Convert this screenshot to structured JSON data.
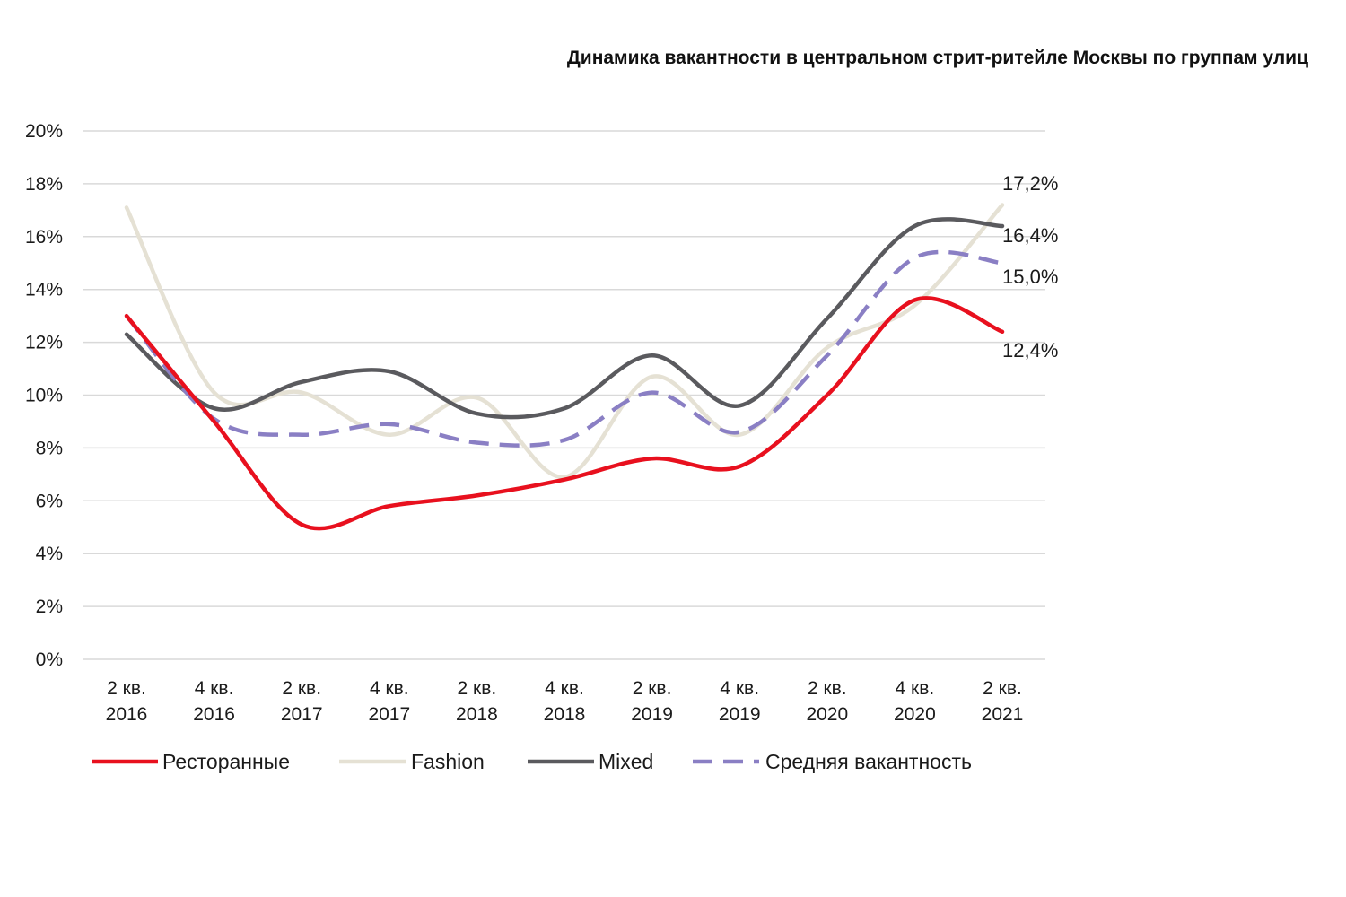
{
  "chart_data": {
    "type": "line",
    "title": "Динамика вакантности в центральном стрит-ритейле Москвы по группам улиц",
    "xlabel": "",
    "ylabel": "",
    "categories": [
      "2 кв. 2016",
      "4 кв. 2016",
      "2 кв. 2017",
      "4 кв. 2017",
      "2 кв. 2018",
      "4 кв. 2018",
      "2 кв. 2019",
      "4 кв. 2019",
      "2 кв. 2020",
      "4 кв. 2020",
      "2 кв. 2021"
    ],
    "category_lines": [
      [
        "2 кв.",
        "2016"
      ],
      [
        "4 кв.",
        "2016"
      ],
      [
        "2 кв.",
        "2017"
      ],
      [
        "4 кв.",
        "2017"
      ],
      [
        "2 кв.",
        "2018"
      ],
      [
        "4 кв.",
        "2018"
      ],
      [
        "2 кв.",
        "2019"
      ],
      [
        "4 кв.",
        "2019"
      ],
      [
        "2 кв.",
        "2020"
      ],
      [
        "4 кв.",
        "2020"
      ],
      [
        "2 кв.",
        "2021"
      ]
    ],
    "ylim": [
      0,
      20
    ],
    "yticks": [
      0,
      2,
      4,
      6,
      8,
      10,
      12,
      14,
      16,
      18,
      20
    ],
    "ytick_labels": [
      "0%",
      "2%",
      "4%",
      "6%",
      "8%",
      "10%",
      "12%",
      "14%",
      "16%",
      "18%",
      "20%"
    ],
    "grid": true,
    "legend_position": "bottom",
    "series": [
      {
        "name": "Ресторанные",
        "values": [
          13.0,
          9.0,
          5.1,
          5.8,
          6.2,
          6.8,
          7.6,
          7.3,
          10.0,
          13.6,
          12.4
        ],
        "color": "#e8101e",
        "dash": "solid",
        "end_label": "12,4%"
      },
      {
        "name": "Fashion",
        "values": [
          17.1,
          10.1,
          10.1,
          8.5,
          9.9,
          6.9,
          10.7,
          8.5,
          11.8,
          13.4,
          17.2
        ],
        "color": "#e5e1d4",
        "dash": "solid",
        "end_label": "17,2%"
      },
      {
        "name": "Mixed",
        "values": [
          12.3,
          9.5,
          10.5,
          10.9,
          9.3,
          9.5,
          11.5,
          9.6,
          12.9,
          16.4,
          16.4
        ],
        "color": "#5a5a5e",
        "dash": "solid",
        "end_label": "16,4%"
      },
      {
        "name": "Средняя вакантность",
        "values": [
          13.0,
          9.1,
          8.5,
          8.9,
          8.2,
          8.3,
          10.1,
          8.6,
          11.5,
          15.2,
          15.0
        ],
        "color": "#8a7fc4",
        "dash": "dashed",
        "end_label": "15,0%"
      }
    ]
  }
}
